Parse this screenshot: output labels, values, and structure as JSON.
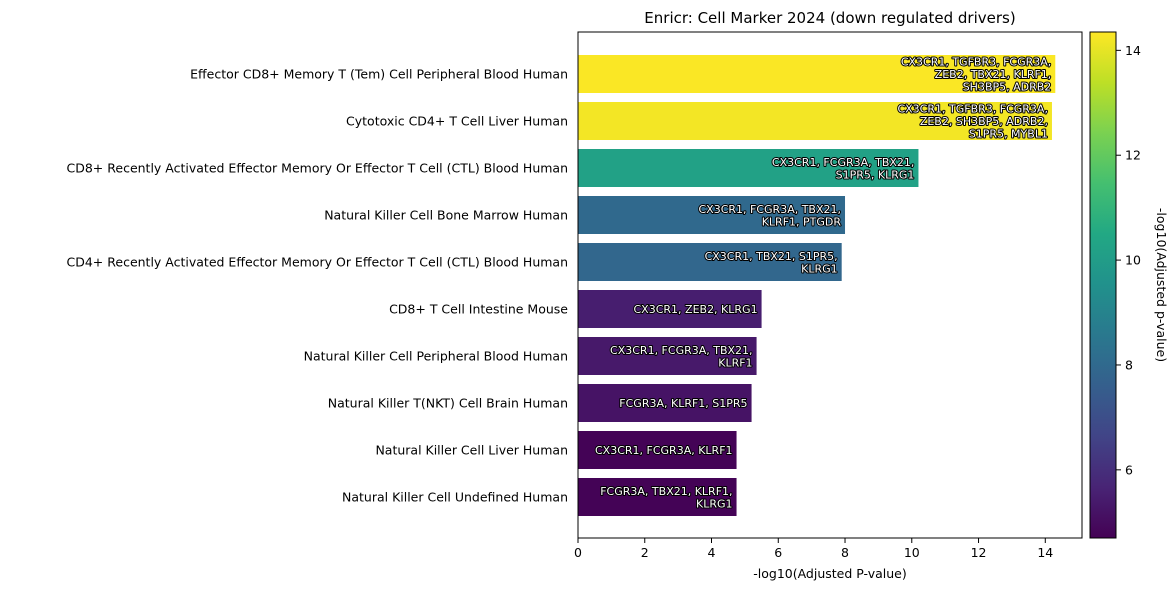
{
  "chart_data": {
    "type": "bar",
    "orientation": "horizontal",
    "title": "Enricr: Cell Marker 2024 (down regulated drivers)",
    "xlabel": "-log10(Adjusted P-value)",
    "xlim": [
      0,
      15.1
    ],
    "xticks": [
      0,
      2,
      4,
      6,
      8,
      10,
      12,
      14
    ],
    "categories": [
      "Effector CD8+ Memory T (Tem) Cell Peripheral Blood Human",
      "Cytotoxic CD4+ T Cell Liver Human",
      "CD8+ Recently Activated Effector Memory Or Effector T Cell (CTL) Blood Human",
      "Natural Killer Cell Bone Marrow Human",
      "CD4+ Recently Activated Effector Memory Or Effector T Cell (CTL) Blood Human",
      "CD8+ T Cell Intestine Mouse",
      "Natural Killer Cell Peripheral Blood Human",
      "Natural Killer T(NKT) Cell Brain Human",
      "Natural Killer Cell Liver Human",
      "Natural Killer Cell Undefined Human"
    ],
    "values": [
      14.3,
      14.2,
      10.2,
      8.0,
      7.9,
      5.5,
      5.35,
      5.2,
      4.75,
      4.75
    ],
    "bar_labels": [
      [
        "CX3CR1, TGFBR3, FCGR3A,",
        "ZEB2, TBX21, KLRF1,",
        "SH3BP5, ADRB2"
      ],
      [
        "CX3CR1, TGFBR3, FCGR3A,",
        "ZEB2, SH3BP5, ADRB2,",
        "S1PR5, MYBL1"
      ],
      [
        "CX3CR1, FCGR3A, TBX21,",
        "S1PR5, KLRG1"
      ],
      [
        "CX3CR1, FCGR3A, TBX21,",
        "KLRF1, PTGDR"
      ],
      [
        "CX3CR1, TBX21, S1PR5,",
        "KLRG1"
      ],
      [
        "CX3CR1, ZEB2, KLRG1"
      ],
      [
        "CX3CR1, FCGR3A, TBX21,",
        "KLRF1"
      ],
      [
        "FCGR3A, KLRF1, S1PR5"
      ],
      [
        "CX3CR1, FCGR3A, KLRF1"
      ],
      [
        "FCGR3A, TBX21, KLRF1,",
        "KLRG1"
      ]
    ],
    "colorbar": {
      "label": "-log10(Adjusted p-value)",
      "colormap": "viridis",
      "range": [
        4.7,
        14.35
      ],
      "ticks": [
        6,
        8,
        10,
        12,
        14
      ]
    },
    "grid": false,
    "legend": "none"
  }
}
